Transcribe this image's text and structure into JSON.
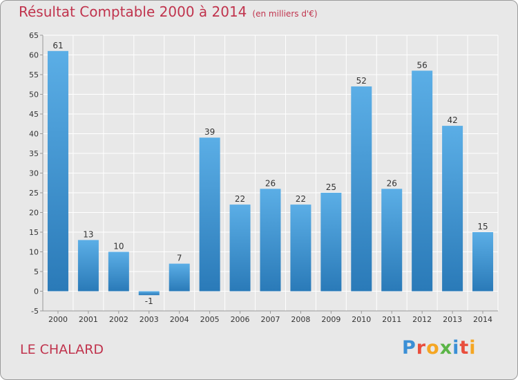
{
  "title": "Résultat Comptable 2000 à 2014",
  "subtitle": "(en milliers d'€)",
  "place": "LE CHALARD",
  "logo": {
    "text": "Proxiti",
    "letters": [
      "P",
      "r",
      "o",
      "x",
      "i",
      "t",
      "i"
    ],
    "colors": [
      "#3a8fd6",
      "#e94e3d",
      "#f5a623",
      "#5bb547",
      "#3a8fd6",
      "#e94e3d",
      "#f5a623"
    ]
  },
  "colors": {
    "bar_top": "#5baee6",
    "bar_bottom": "#2a7ab8",
    "title": "#c0334d",
    "grid": "#ffffff"
  },
  "chart_data": {
    "type": "bar",
    "categories": [
      "2000",
      "2001",
      "2002",
      "2003",
      "2004",
      "2005",
      "2006",
      "2007",
      "2008",
      "2009",
      "2010",
      "2011",
      "2012",
      "2013",
      "2014"
    ],
    "values": [
      61,
      13,
      10,
      -1,
      7,
      39,
      22,
      26,
      22,
      25,
      52,
      26,
      56,
      42,
      15
    ],
    "ylim": [
      -5,
      65
    ],
    "yticks": [
      -5,
      0,
      5,
      10,
      15,
      20,
      25,
      30,
      35,
      40,
      45,
      50,
      55,
      60,
      65
    ],
    "grid": true
  }
}
